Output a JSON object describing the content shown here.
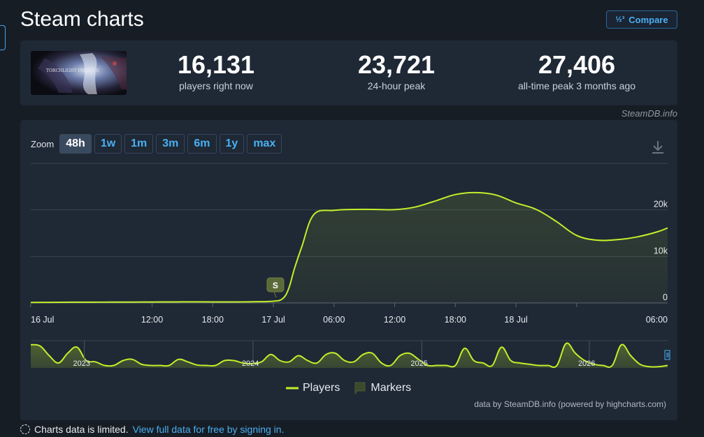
{
  "page": {
    "title": "Steam charts",
    "compare_label": "Compare",
    "compare_icon": "1/2/3"
  },
  "stats": {
    "current": {
      "value": "16,131",
      "label": "players right now"
    },
    "peak24": {
      "value": "23,721",
      "label": "24-hour peak"
    },
    "alltime": {
      "value": "27,406",
      "label": "all-time peak 3 months ago"
    }
  },
  "game_thumb_text": "TORCHLIGHT INFINITE",
  "credit_top": "SteamDB.info",
  "zoom": {
    "label": "Zoom",
    "buttons": [
      "48h",
      "1w",
      "1m",
      "3m",
      "6m",
      "1y",
      "max"
    ],
    "active": "48h"
  },
  "chart_data": {
    "type": "line",
    "series": [
      {
        "name": "Players",
        "color": "#c1ef2a",
        "x_hours": [
          0,
          2,
          4,
          6,
          8,
          10,
          12,
          14,
          16,
          18,
          20,
          22,
          24,
          24.9,
          25.5,
          26.1,
          26.8,
          28,
          30,
          32,
          34,
          36,
          38,
          40,
          42,
          44,
          46,
          48,
          50,
          52,
          54,
          56,
          58,
          60,
          62,
          63
        ],
        "values": [
          120,
          140,
          160,
          170,
          180,
          200,
          210,
          230,
          240,
          230,
          220,
          250,
          380,
          900,
          3000,
          7500,
          12000,
          19000,
          19900,
          20100,
          20100,
          20050,
          20600,
          21900,
          23300,
          23721,
          23200,
          21500,
          20100,
          17500,
          14500,
          13500,
          13600,
          14200,
          15300,
          16131
        ]
      }
    ],
    "markers": [
      {
        "x_hours": 24.2,
        "label": "S"
      }
    ],
    "x_tick_labels": [
      "16 Jul",
      "12:00",
      "18:00",
      "17 Jul",
      "06:00",
      "12:00",
      "18:00",
      "18 Jul",
      "06:00"
    ],
    "x_tick_hours": [
      0,
      12,
      18,
      24,
      30,
      36,
      42,
      48,
      54
    ],
    "y_tick_labels": [
      "0",
      "10k",
      "20k"
    ],
    "y_tick_values": [
      0,
      10000,
      20000
    ],
    "ylim": [
      0,
      30000
    ],
    "grid": true,
    "navigator": {
      "year_labels": [
        "2023",
        "2024",
        "2025",
        "2026"
      ],
      "values": [
        0.95,
        0.9,
        0.5,
        0.2,
        0.6,
        0.85,
        0.3,
        0.25,
        0.1,
        0.1,
        0.3,
        0.35,
        0.15,
        0.1,
        0.1,
        0.1,
        0.35,
        0.25,
        0.12,
        0.1,
        0.1,
        0.3,
        0.3,
        0.2,
        0.18,
        0.25,
        0.55,
        0.3,
        0.25,
        0.5,
        0.3,
        0.2,
        0.55,
        0.6,
        0.3,
        0.25,
        0.55,
        0.6,
        0.2,
        0.1,
        0.5,
        0.6,
        0.35,
        0.1,
        0.1,
        0.1,
        0.1,
        0.8,
        0.3,
        0.2,
        0.1,
        0.85,
        0.3,
        0.2,
        0.15,
        0.1,
        0.1,
        0.1,
        1.0,
        0.6,
        0.3,
        0.15,
        0.1,
        0.1,
        0.95,
        0.5,
        0.15,
        0.05,
        0.05,
        0.1
      ]
    }
  },
  "legend": {
    "players": "Players",
    "markers": "Markers"
  },
  "credit_bottom": "data by SteamDB.info (powered by highcharts.com)",
  "limited": {
    "text": "Charts data is limited.",
    "link": "View full data for free by signing in."
  }
}
